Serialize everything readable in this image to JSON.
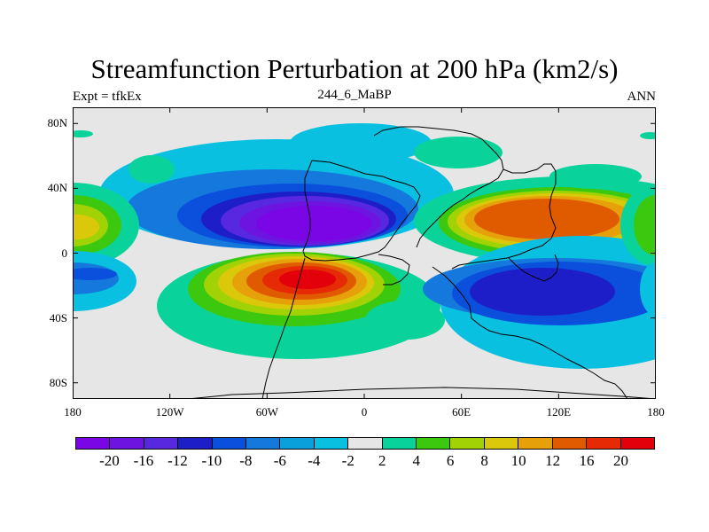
{
  "title": "Streamfunction Perturbation at 200 hPa (km2/s)",
  "left_label": "Expt = tfkEx",
  "center_label": "244_6_MaBP",
  "right_label": "ANN",
  "map": {
    "background_color": "#e6e6e6",
    "lon_range": [
      -180,
      180
    ],
    "lat_range": [
      -90,
      90
    ],
    "lat_ticks": [
      {
        "value": 80,
        "label": "80N"
      },
      {
        "value": 40,
        "label": "40N"
      },
      {
        "value": 0,
        "label": "0"
      },
      {
        "value": -40,
        "label": "40S"
      },
      {
        "value": -80,
        "label": "80S"
      }
    ],
    "lon_ticks": [
      {
        "value": -180,
        "label": "180"
      },
      {
        "value": -120,
        "label": "120W"
      },
      {
        "value": -60,
        "label": "60W"
      },
      {
        "value": 0,
        "label": "0"
      },
      {
        "value": 60,
        "label": "60E"
      },
      {
        "value": 120,
        "label": "120E"
      },
      {
        "value": 180,
        "label": "180"
      }
    ],
    "features": [
      {
        "name": "negative-anomaly-north-americas",
        "rx": 55,
        "ry": 34,
        "level": -22,
        "cx": -40,
        "cy": 18,
        "color": "#7a05e5"
      },
      {
        "name": "positive-anomaly-south-americas",
        "rx": 55,
        "ry": 29,
        "level": 22,
        "cx": -40,
        "cy": -16,
        "color": "#e4000b"
      },
      {
        "name": "positive-anomaly-asia",
        "rx": 62,
        "ry": 28,
        "level": 16,
        "cx": 100,
        "cy": 22,
        "color": "#e05a00"
      },
      {
        "name": "negative-anomaly-indian-ocean",
        "rx": 62,
        "ry": 31,
        "level": -12,
        "cx": 100,
        "cy": -22,
        "color": "#1e1ec8"
      }
    ]
  },
  "colorbar": {
    "colors": [
      "#7a05e5",
      "#6d14e0",
      "#5828e0",
      "#1e1ec8",
      "#0a50dc",
      "#1478dc",
      "#0aa0dc",
      "#0ac0e0",
      "#e6e6e6",
      "#0ad29b",
      "#3cc80f",
      "#a0d205",
      "#dcc80a",
      "#e6a00a",
      "#e05a00",
      "#e62a05",
      "#e4000b"
    ],
    "labels": [
      "-20",
      "-16",
      "-12",
      "-10",
      "-8",
      "-6",
      "-4",
      "-2",
      "2",
      "4",
      "6",
      "8",
      "10",
      "12",
      "16",
      "20"
    ]
  }
}
